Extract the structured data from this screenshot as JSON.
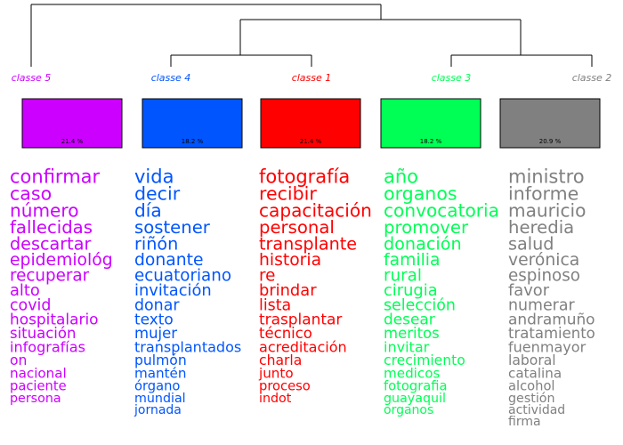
{
  "chart_data": {
    "type": "dendrogram",
    "categories": [
      "classe  5",
      "classe  4",
      "classe  1",
      "classe  3",
      "classe  2"
    ],
    "values": [
      21.4,
      18.2,
      21.4,
      18.2,
      20.9
    ],
    "value_labels": [
      "21.4 %",
      "18.2 %",
      "21.4 %",
      "18.2 %",
      "20.9 %"
    ],
    "colors": [
      "#cc00ff",
      "#0055ff",
      "#ff0000",
      "#00ff55",
      "#808080"
    ],
    "words": [
      [
        "confirmar",
        "caso",
        "número",
        "fallecidas",
        "descartar",
        "epidemiológ",
        "recuperar",
        "alto",
        "covid",
        "hospitalario",
        "situación",
        "infografías",
        "on",
        "nacional",
        "paciente",
        "persona"
      ],
      [
        "vida",
        "decir",
        "día",
        "sostener",
        "riñón",
        "donante",
        "ecuatoriano",
        "invitación",
        "donar",
        "texto",
        "mujer",
        "transplantados",
        "pulmón",
        "mantén",
        "órgano",
        "mundial",
        "jornada"
      ],
      [
        "fotografía",
        "recibir",
        "capacitación",
        "personal",
        "transplante",
        "historia",
        "re",
        "brindar",
        "lista",
        "trasplantar",
        "técnico",
        "acreditación",
        "charla",
        "junto",
        "proceso",
        "indot"
      ],
      [
        "año",
        "organos",
        "convocatoria",
        "promover",
        "donación",
        "familia",
        "rural",
        "cirugia",
        "selección",
        "desear",
        "meritos",
        "invitar",
        "crecimiento",
        "medicos",
        "fotografia",
        "guayaquil",
        "organos"
      ],
      [
        "ministro",
        "informe",
        "mauricio",
        "heredia",
        "salud",
        "verónica",
        "espinoso",
        "favor",
        "numerar",
        "andramuño",
        "tratamiento",
        "fuenmayor",
        "laboral",
        "catalina",
        "alcohol",
        "gestión",
        "actividad",
        "firma"
      ]
    ]
  }
}
